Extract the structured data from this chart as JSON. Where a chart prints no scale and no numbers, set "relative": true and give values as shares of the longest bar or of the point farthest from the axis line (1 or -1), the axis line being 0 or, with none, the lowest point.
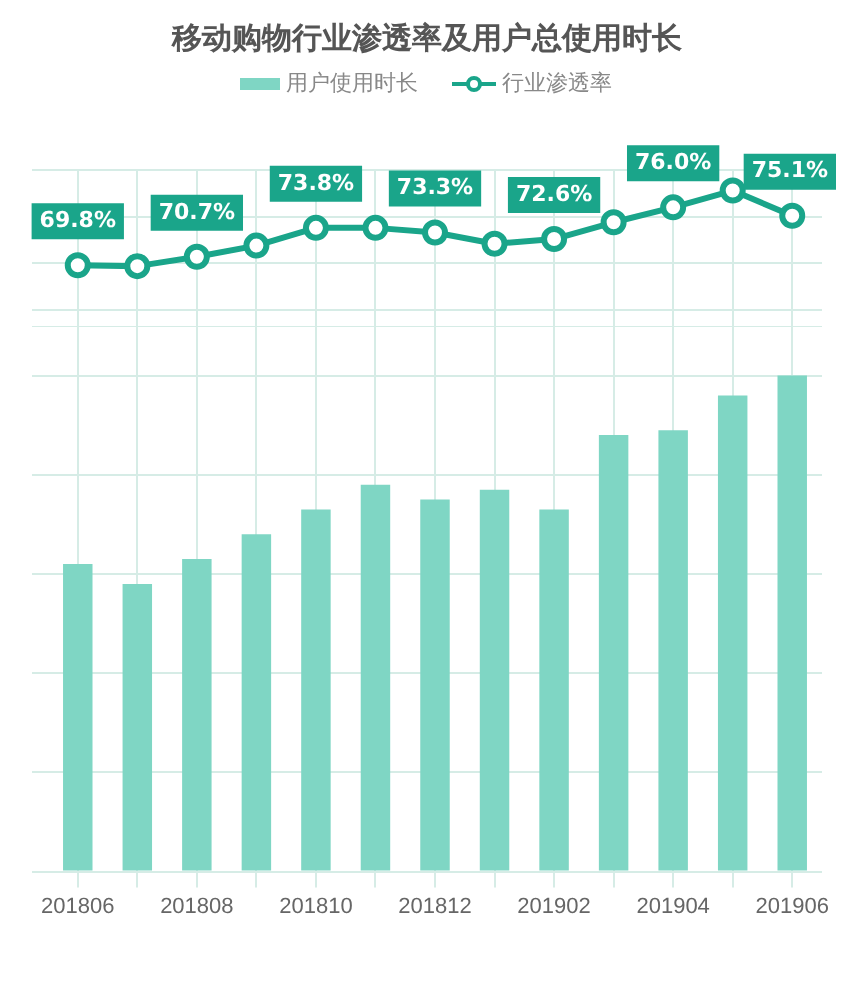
{
  "chart_data": [
    {
      "type": "line",
      "title": "移动购物行业渗透率及用户总使用时长",
      "grid": true,
      "legend": "top",
      "tick_labels": false,
      "categories": [
        "201806",
        null,
        "201808",
        null,
        "201810",
        null,
        "201812",
        null,
        "201902",
        null,
        "201904",
        null,
        "201906"
      ],
      "series": [
        {
          "name": "行业渗透率",
          "color": "#1aa58a",
          "marker": "circle",
          "values": [
            69.8,
            69.7,
            70.7,
            71.9,
            73.8,
            73.8,
            73.3,
            72.1,
            72.6,
            74.4,
            76.0,
            77.8,
            75.1
          ],
          "value_labels": [
            "69.8%",
            null,
            "70.7%",
            null,
            "73.8%",
            null,
            "73.3%",
            null,
            "72.6%",
            null,
            "76.0%",
            null,
            "75.1%"
          ]
        }
      ]
    },
    {
      "type": "bar",
      "relative": true,
      "grid": true,
      "legend": "top",
      "categories": [
        "201806",
        null,
        "201808",
        null,
        "201810",
        null,
        "201812",
        null,
        "201902",
        null,
        "201904",
        null,
        "201906"
      ],
      "series": [
        {
          "name": "用户使用时长",
          "color": "#7fd6c4",
          "values": [
            0.62,
            0.58,
            0.63,
            0.68,
            0.73,
            0.78,
            0.75,
            0.77,
            0.73,
            0.88,
            0.89,
            0.96,
            1
          ]
        }
      ]
    }
  ]
}
